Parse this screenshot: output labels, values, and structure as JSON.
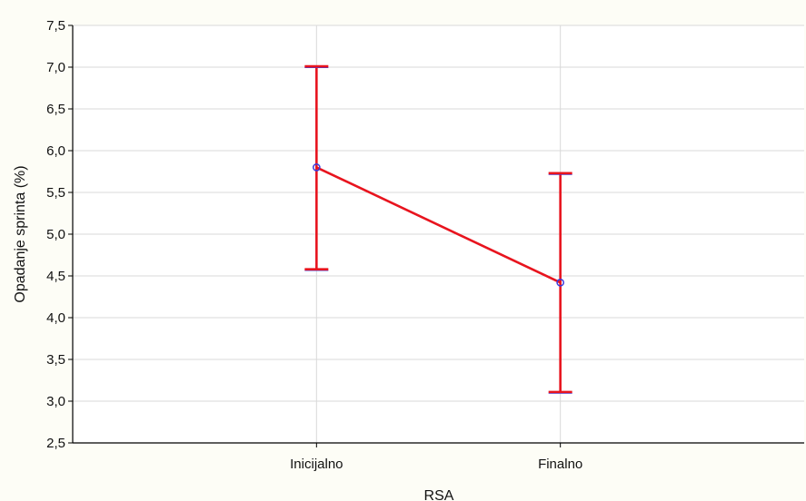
{
  "chart_data": {
    "type": "line",
    "title": "",
    "xlabel": "RSA",
    "ylabel": "Opadanje sprinta (%)",
    "categories": [
      "Inicijalno",
      "Finalno"
    ],
    "series": [
      {
        "values": [
          5.8,
          4.42
        ],
        "error_low": [
          4.58,
          3.11
        ],
        "error_high": [
          7.01,
          5.73
        ]
      }
    ],
    "ylim": [
      2.5,
      7.5
    ],
    "y_ticks": [
      "2,5",
      "3,0",
      "3,5",
      "4,0",
      "4,5",
      "5,0",
      "5,5",
      "6,0",
      "6,5",
      "7,0",
      "7,5"
    ],
    "grid": true,
    "colors": {
      "line": "#e8141e",
      "marker": "#3a3adc",
      "grid": "#d9d9d9",
      "plot_bg": "#ffffff",
      "page_bg": "#fdfdf6"
    }
  }
}
